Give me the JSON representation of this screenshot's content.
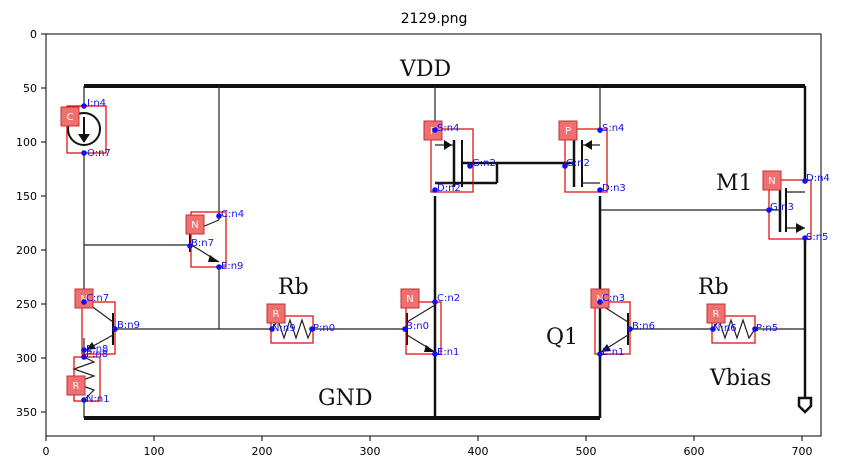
{
  "title": "2129.png",
  "x_ticks": [
    "0",
    "100",
    "200",
    "300",
    "400",
    "500",
    "600",
    "700"
  ],
  "y_ticks": [
    "0",
    "50",
    "100",
    "150",
    "200",
    "250",
    "300",
    "350"
  ],
  "circuit_labels": {
    "vdd": "VDD",
    "gnd": "GND",
    "rb_left": "Rb",
    "rb_right": "Rb",
    "q1": "Q1",
    "m1": "M1",
    "vbias": "Vbias"
  },
  "components": [
    {
      "tag": "C",
      "pins": [
        "I:n4",
        "O:n7"
      ]
    },
    {
      "tag": "N",
      "pins": [
        "C:n4",
        "B:n7",
        "E:n9"
      ]
    },
    {
      "tag": "N",
      "pins": [
        "C:n7",
        "B:n9",
        "E:n8"
      ]
    },
    {
      "tag": "R",
      "pins": [
        "P:n8",
        "N:n1"
      ]
    },
    {
      "tag": "R",
      "pins": [
        "N:n9",
        "P:n0"
      ]
    },
    {
      "tag": "N",
      "pins": [
        "C:n2",
        "B:n0",
        "E:n1"
      ]
    },
    {
      "tag": "P",
      "pins": [
        "S:n4",
        "G:n2",
        "D:n2"
      ]
    },
    {
      "tag": "P",
      "pins": [
        "S:n4",
        "G:n2",
        "D:n3"
      ]
    },
    {
      "tag": "N",
      "pins": [
        "C:n3",
        "B:n6",
        "E:n1"
      ]
    },
    {
      "tag": "R",
      "pins": [
        "N:n6",
        "P:n5"
      ]
    },
    {
      "tag": "N",
      "pins": [
        "D:n4",
        "G:n3",
        "S:n5"
      ]
    }
  ]
}
